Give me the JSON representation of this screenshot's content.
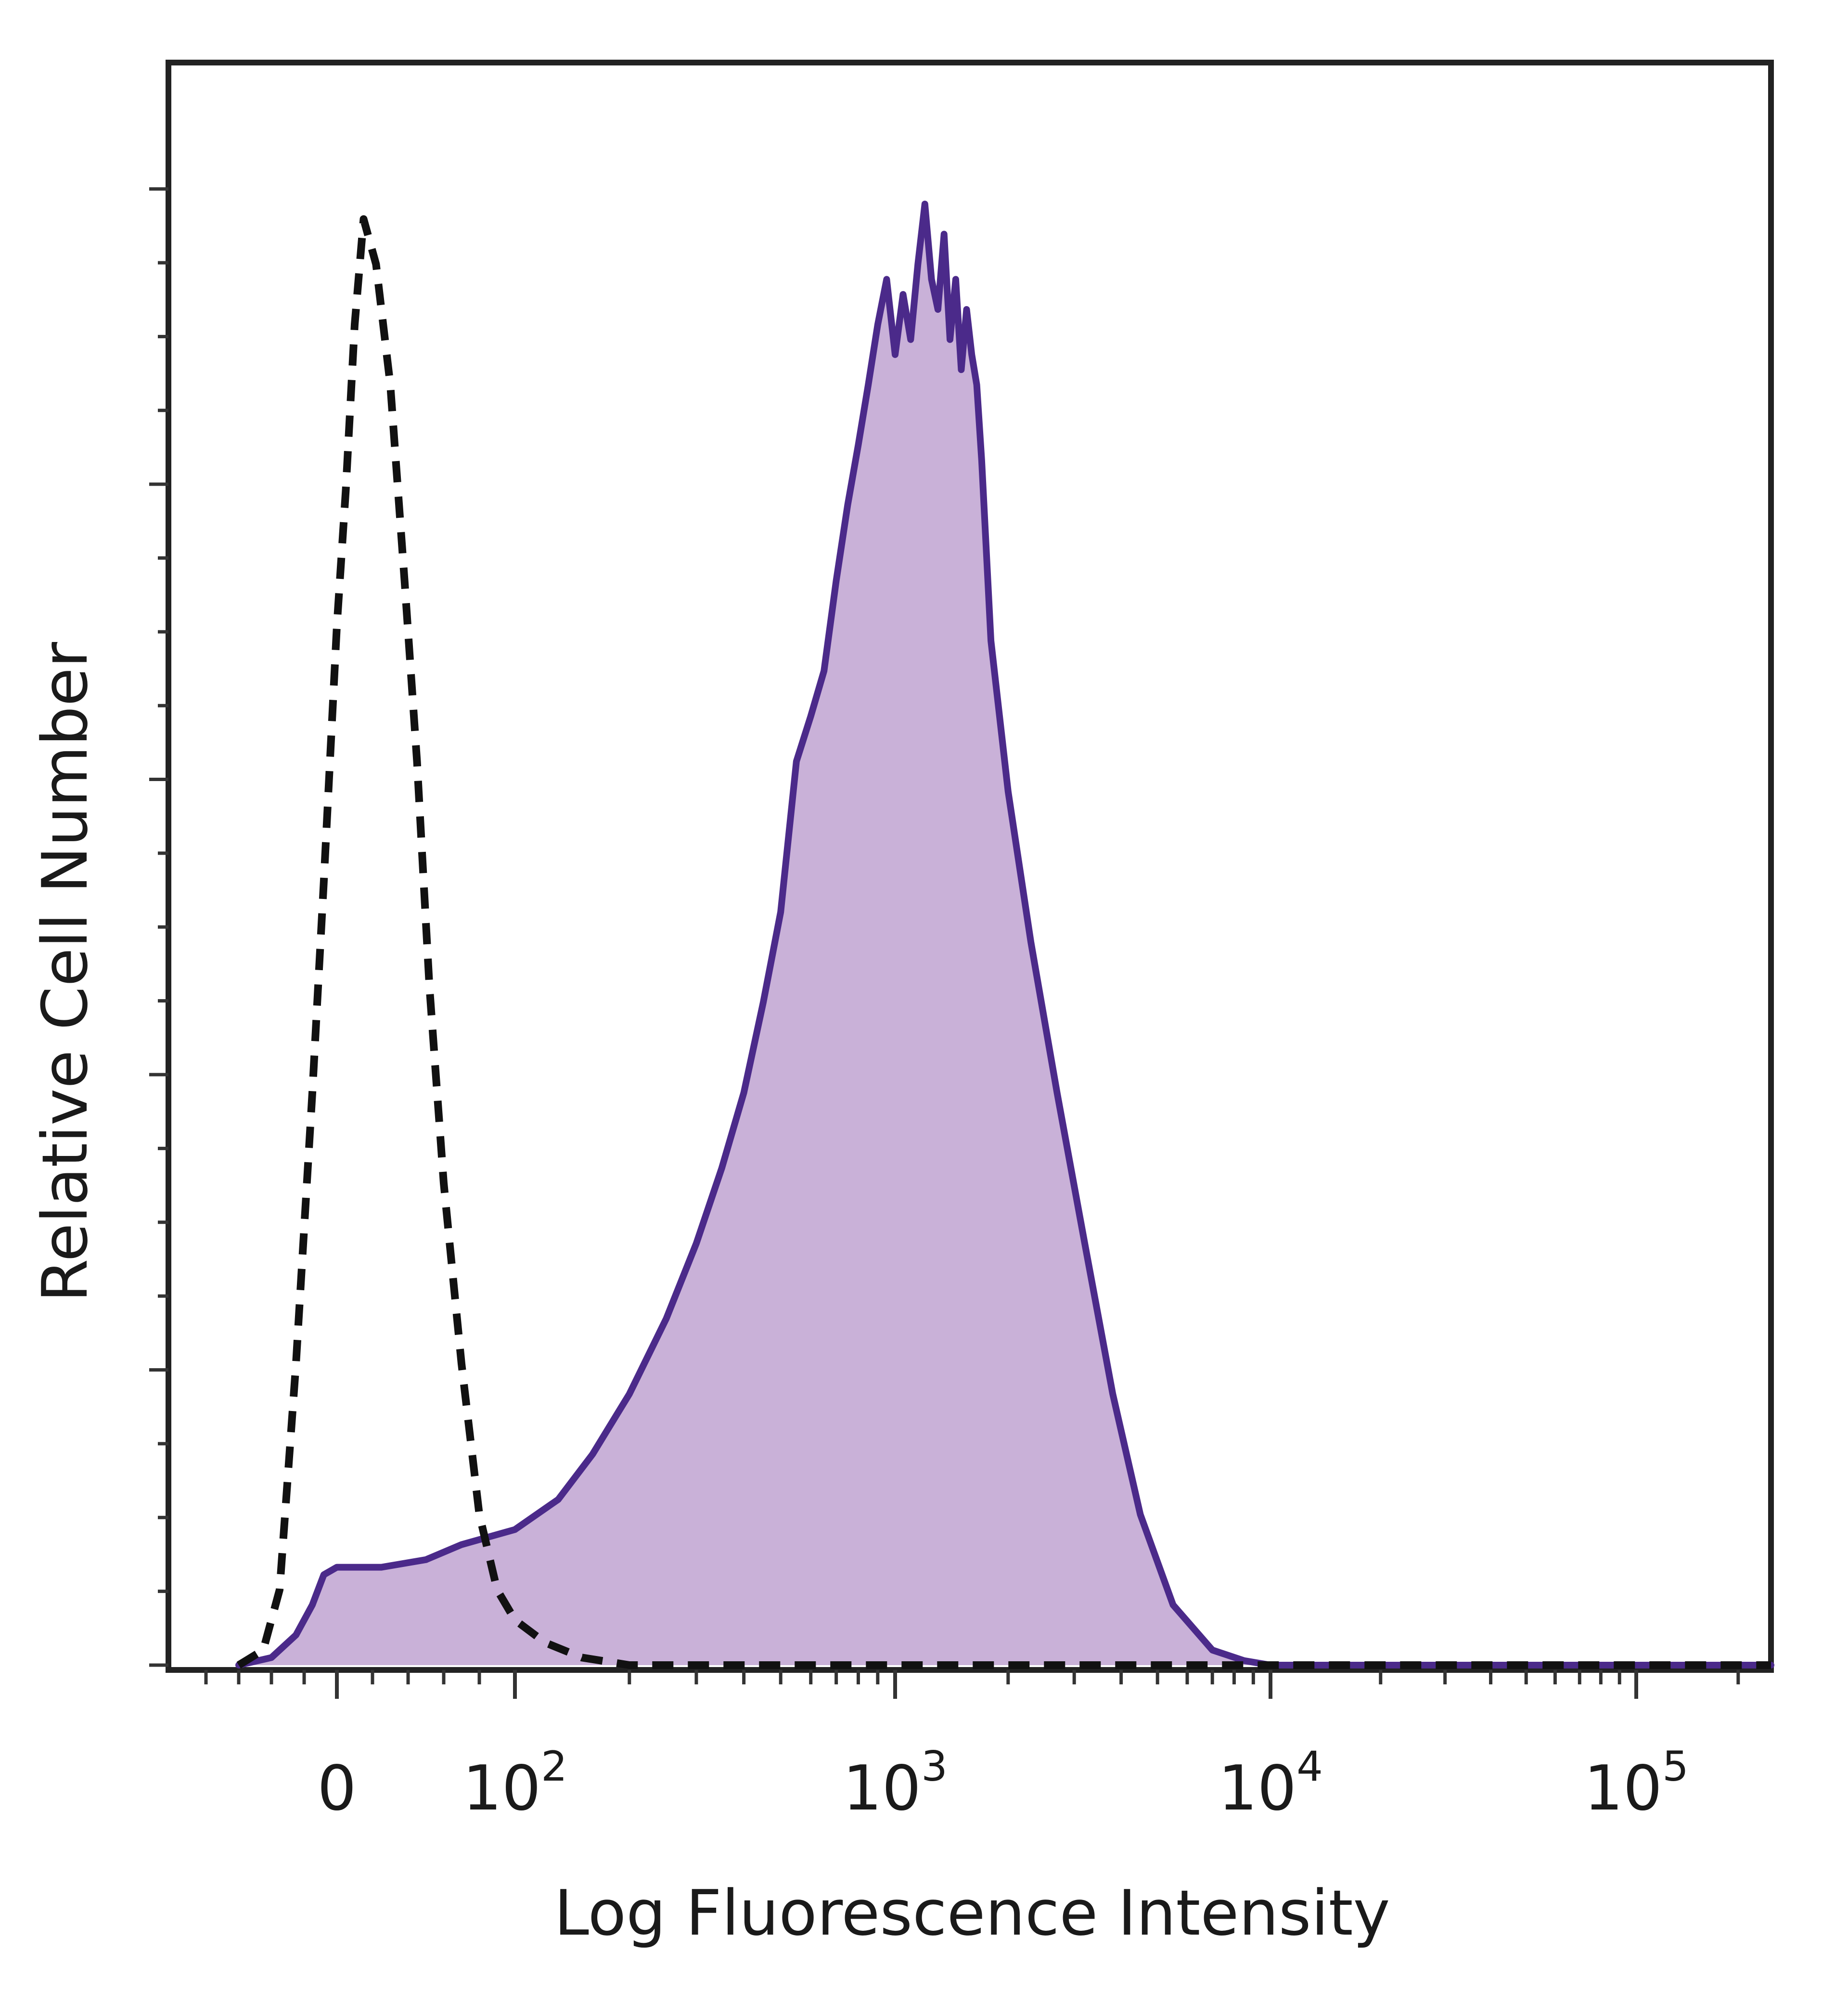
{
  "chart_data": {
    "type": "area",
    "title": "",
    "xlabel": "Log Fluorescence Intensity",
    "ylabel": "Relative Cell Number",
    "x_scale": "biexponential",
    "xlim": [
      -100,
      250000
    ],
    "ylim": [
      0,
      100
    ],
    "grid": false,
    "legend": "none",
    "x_ticks": [
      {
        "value": 0,
        "base": "0",
        "exp": ""
      },
      {
        "value": 100,
        "base": "10",
        "exp": "2"
      },
      {
        "value": 1000,
        "base": "10",
        "exp": "3"
      },
      {
        "value": 10000,
        "base": "10",
        "exp": "4"
      },
      {
        "value": 100000,
        "base": "10",
        "exp": "5"
      }
    ],
    "series": [
      {
        "style": "dashed",
        "fill": false,
        "color": "#111111",
        "x": [
          -60,
          -45,
          -35,
          -25,
          -15,
          -8,
          0,
          5,
          10,
          15,
          22,
          30,
          38,
          45,
          52,
          60,
          70,
          80,
          90,
          100,
          120,
          150,
          200,
          300,
          1000,
          10000,
          250000
        ],
        "y": [
          0,
          1,
          5,
          20,
          38,
          52,
          69,
          78,
          89,
          96,
          93,
          85,
          72,
          60,
          45,
          32,
          20,
          10,
          5,
          3,
          1.5,
          0.5,
          0,
          0,
          0,
          0,
          0
        ]
      },
      {
        "style": "solid",
        "fill": true,
        "color": "#4b2a8a",
        "fill_color": "#c9b1d8",
        "x": [
          -60,
          -40,
          -25,
          -15,
          -8,
          0,
          10,
          25,
          50,
          70,
          100,
          130,
          160,
          200,
          250,
          300,
          350,
          400,
          450,
          500,
          550,
          600,
          650,
          700,
          750,
          800,
          850,
          900,
          950,
          1000,
          1050,
          1100,
          1150,
          1200,
          1250,
          1300,
          1350,
          1400,
          1450,
          1500,
          1550,
          1600,
          1650,
          1700,
          1800,
          2000,
          2300,
          2700,
          3200,
          3800,
          4500,
          5500,
          7000,
          8500,
          10000,
          20000,
          100000,
          250000
        ],
        "y": [
          0,
          0.5,
          2,
          4,
          6,
          6.5,
          6.5,
          6.5,
          7,
          8,
          9,
          11,
          14,
          18,
          23,
          28,
          33,
          38,
          44,
          50,
          60,
          63,
          66,
          72,
          77,
          81,
          85,
          89,
          92,
          87,
          91,
          88,
          93,
          97,
          92,
          90,
          95,
          88,
          92,
          86,
          90,
          87,
          85,
          80,
          68,
          58,
          48,
          38,
          28,
          18,
          10,
          4,
          1,
          0.3,
          0,
          0,
          0,
          0
        ]
      }
    ]
  }
}
